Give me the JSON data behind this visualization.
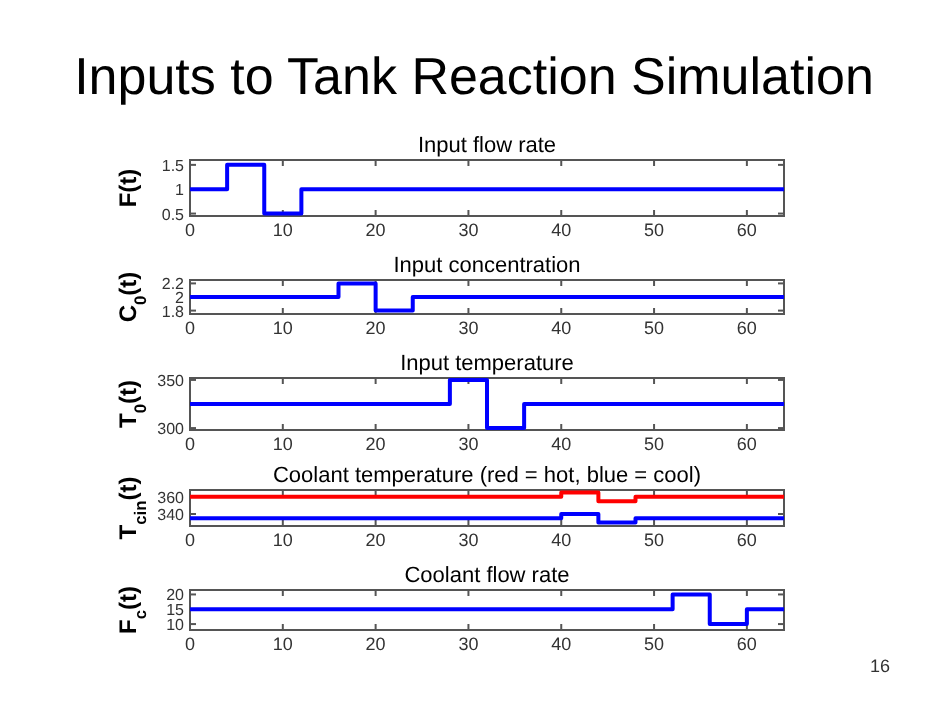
{
  "chart_data": [
    {
      "type": "step",
      "title": "Input flow rate",
      "ylabel": "F(t)",
      "annotations": [
        "Inputs to Tank Reaction Simulation"
      ],
      "x": [
        0,
        4,
        8,
        12,
        64
      ],
      "series": [
        {
          "color": "#0000ff",
          "values": [
            1,
            1.5,
            0.5,
            1,
            1
          ]
        }
      ],
      "xlim": [
        0,
        64
      ],
      "xticks": [
        0,
        10,
        20,
        30,
        40,
        50,
        60
      ],
      "ylim": [
        0.45,
        1.6
      ],
      "yticks": [
        0.5,
        1,
        1.5
      ]
    },
    {
      "type": "step",
      "title": "Input concentration",
      "ylabel": "C$_{0}$(t)",
      "x": [
        0,
        16,
        20,
        24,
        64
      ],
      "series": [
        {
          "color": "#0000ff",
          "values": [
            2,
            2.2,
            1.8,
            2,
            2
          ]
        }
      ],
      "xlim": [
        0,
        64
      ],
      "xticks": [
        0,
        10,
        20,
        30,
        40,
        50,
        60
      ],
      "ylim": [
        1.75,
        2.25
      ],
      "yticks": [
        1.8,
        2,
        2.2
      ]
    },
    {
      "type": "step",
      "title": "Input temperature",
      "ylabel": "T$_{0}$(t)",
      "x": [
        0,
        28,
        32,
        36,
        64
      ],
      "series": [
        {
          "color": "#0000ff",
          "values": [
            325,
            350,
            300,
            325,
            325
          ]
        }
      ],
      "xlim": [
        0,
        64
      ],
      "xticks": [
        0,
        10,
        20,
        30,
        40,
        50,
        60
      ],
      "ylim": [
        298,
        352
      ],
      "yticks": [
        300,
        350
      ]
    },
    {
      "type": "step",
      "title": "Coolant temperature (red = hot, blue = cool)",
      "ylabel": "T$_{cin}$(t)",
      "x": [
        0,
        40,
        44,
        48,
        64
      ],
      "series": [
        {
          "color": "#ff0000",
          "values": [
            360,
            365,
            355,
            360,
            360
          ]
        },
        {
          "color": "#0000ff",
          "values": [
            335,
            340,
            330,
            335,
            335
          ]
        }
      ],
      "xlim": [
        0,
        64
      ],
      "xticks": [
        0,
        10,
        20,
        30,
        40,
        50,
        60
      ],
      "ylim": [
        326,
        368
      ],
      "yticks": [
        340,
        360
      ]
    },
    {
      "type": "step",
      "title": "Coolant flow rate",
      "ylabel": "F$_{c}$(t)",
      "annotations": [
        "16"
      ],
      "x": [
        0,
        52,
        56,
        60,
        64
      ],
      "series": [
        {
          "color": "#0000ff",
          "values": [
            15,
            20,
            10,
            15,
            15
          ]
        }
      ],
      "xlim": [
        0,
        64
      ],
      "xticks": [
        0,
        10,
        20,
        30,
        40,
        50,
        60
      ],
      "ylim": [
        8,
        21.5
      ],
      "yticks": [
        10,
        15,
        20
      ]
    }
  ]
}
